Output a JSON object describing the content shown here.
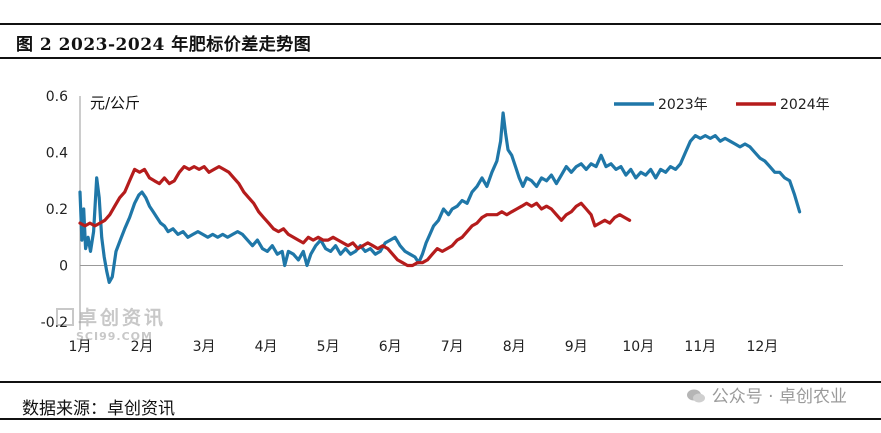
{
  "header": {
    "title": "图 2 2023-2024 年肥标价差走势图"
  },
  "footer": {
    "source": "数据来源：卓创资讯",
    "wechat": "公众号 · 卓创农业"
  },
  "watermark": {
    "cn": "卓创资讯",
    "en": "SCI99.COM"
  },
  "chart_data": {
    "type": "line",
    "title": "图 2 2023-2024 年肥标价差走势图",
    "ylabel": "元/公斤",
    "xlabel": "",
    "ylim": [
      -0.2,
      0.6
    ],
    "yticks": [
      "0.6",
      "0.4",
      "0.2",
      "0",
      "-0.2"
    ],
    "categories": [
      "1月",
      "2月",
      "3月",
      "4月",
      "5月",
      "6月",
      "7月",
      "8月",
      "9月",
      "10月",
      "11月",
      "12月"
    ],
    "legend_position": "top-right",
    "grid": false,
    "series": [
      {
        "name": "2023年",
        "color": "#1f77a8",
        "points": [
          [
            0.0,
            0.26
          ],
          [
            0.03,
            0.09
          ],
          [
            0.06,
            0.2
          ],
          [
            0.09,
            0.06
          ],
          [
            0.13,
            0.1
          ],
          [
            0.17,
            0.05
          ],
          [
            0.22,
            0.12
          ],
          [
            0.27,
            0.31
          ],
          [
            0.31,
            0.24
          ],
          [
            0.35,
            0.1
          ],
          [
            0.39,
            0.03
          ],
          [
            0.43,
            -0.02
          ],
          [
            0.47,
            -0.06
          ],
          [
            0.52,
            -0.04
          ],
          [
            0.58,
            0.05
          ],
          [
            0.65,
            0.09
          ],
          [
            0.72,
            0.13
          ],
          [
            0.8,
            0.17
          ],
          [
            0.88,
            0.22
          ],
          [
            0.95,
            0.25
          ],
          [
            1.0,
            0.26
          ],
          [
            1.06,
            0.24
          ],
          [
            1.12,
            0.21
          ],
          [
            1.18,
            0.19
          ],
          [
            1.24,
            0.17
          ],
          [
            1.3,
            0.15
          ],
          [
            1.36,
            0.14
          ],
          [
            1.42,
            0.12
          ],
          [
            1.5,
            0.13
          ],
          [
            1.58,
            0.11
          ],
          [
            1.66,
            0.12
          ],
          [
            1.74,
            0.1
          ],
          [
            1.82,
            0.11
          ],
          [
            1.9,
            0.12
          ],
          [
            1.98,
            0.11
          ],
          [
            2.06,
            0.1
          ],
          [
            2.14,
            0.11
          ],
          [
            2.22,
            0.1
          ],
          [
            2.3,
            0.11
          ],
          [
            2.38,
            0.1
          ],
          [
            2.46,
            0.11
          ],
          [
            2.54,
            0.12
          ],
          [
            2.62,
            0.11
          ],
          [
            2.7,
            0.09
          ],
          [
            2.78,
            0.07
          ],
          [
            2.86,
            0.09
          ],
          [
            2.94,
            0.06
          ],
          [
            3.02,
            0.05
          ],
          [
            3.1,
            0.07
          ],
          [
            3.18,
            0.04
          ],
          [
            3.26,
            0.05
          ],
          [
            3.3,
            0.0
          ],
          [
            3.36,
            0.05
          ],
          [
            3.44,
            0.04
          ],
          [
            3.52,
            0.02
          ],
          [
            3.6,
            0.05
          ],
          [
            3.66,
            0.0
          ],
          [
            3.72,
            0.04
          ],
          [
            3.8,
            0.07
          ],
          [
            3.88,
            0.09
          ],
          [
            3.96,
            0.06
          ],
          [
            4.04,
            0.05
          ],
          [
            4.12,
            0.07
          ],
          [
            4.2,
            0.04
          ],
          [
            4.28,
            0.06
          ],
          [
            4.36,
            0.04
          ],
          [
            4.44,
            0.05
          ],
          [
            4.52,
            0.07
          ],
          [
            4.6,
            0.05
          ],
          [
            4.68,
            0.06
          ],
          [
            4.76,
            0.04
          ],
          [
            4.84,
            0.05
          ],
          [
            4.92,
            0.08
          ],
          [
            5.0,
            0.09
          ],
          [
            5.08,
            0.1
          ],
          [
            5.16,
            0.07
          ],
          [
            5.24,
            0.05
          ],
          [
            5.32,
            0.04
          ],
          [
            5.4,
            0.03
          ],
          [
            5.46,
            0.01
          ],
          [
            5.52,
            0.04
          ],
          [
            5.58,
            0.08
          ],
          [
            5.64,
            0.11
          ],
          [
            5.7,
            0.14
          ],
          [
            5.78,
            0.16
          ],
          [
            5.86,
            0.2
          ],
          [
            5.94,
            0.18
          ],
          [
            6.0,
            0.2
          ],
          [
            6.08,
            0.21
          ],
          [
            6.16,
            0.23
          ],
          [
            6.24,
            0.22
          ],
          [
            6.32,
            0.26
          ],
          [
            6.4,
            0.28
          ],
          [
            6.48,
            0.31
          ],
          [
            6.56,
            0.28
          ],
          [
            6.64,
            0.33
          ],
          [
            6.72,
            0.37
          ],
          [
            6.78,
            0.44
          ],
          [
            6.82,
            0.54
          ],
          [
            6.86,
            0.47
          ],
          [
            6.9,
            0.41
          ],
          [
            6.96,
            0.39
          ],
          [
            7.02,
            0.35
          ],
          [
            7.08,
            0.31
          ],
          [
            7.14,
            0.28
          ],
          [
            7.2,
            0.31
          ],
          [
            7.28,
            0.3
          ],
          [
            7.36,
            0.28
          ],
          [
            7.44,
            0.31
          ],
          [
            7.52,
            0.3
          ],
          [
            7.6,
            0.32
          ],
          [
            7.68,
            0.29
          ],
          [
            7.76,
            0.32
          ],
          [
            7.84,
            0.35
          ],
          [
            7.92,
            0.33
          ],
          [
            8.0,
            0.35
          ],
          [
            8.08,
            0.36
          ],
          [
            8.16,
            0.34
          ],
          [
            8.24,
            0.36
          ],
          [
            8.32,
            0.35
          ],
          [
            8.4,
            0.39
          ],
          [
            8.48,
            0.35
          ],
          [
            8.56,
            0.36
          ],
          [
            8.64,
            0.34
          ],
          [
            8.72,
            0.35
          ],
          [
            8.8,
            0.32
          ],
          [
            8.88,
            0.34
          ],
          [
            8.96,
            0.31
          ],
          [
            9.04,
            0.33
          ],
          [
            9.12,
            0.32
          ],
          [
            9.2,
            0.34
          ],
          [
            9.28,
            0.31
          ],
          [
            9.36,
            0.34
          ],
          [
            9.44,
            0.33
          ],
          [
            9.52,
            0.35
          ],
          [
            9.6,
            0.34
          ],
          [
            9.68,
            0.36
          ],
          [
            9.76,
            0.4
          ],
          [
            9.84,
            0.44
          ],
          [
            9.92,
            0.46
          ],
          [
            10.0,
            0.45
          ],
          [
            10.08,
            0.46
          ],
          [
            10.16,
            0.45
          ],
          [
            10.24,
            0.46
          ],
          [
            10.32,
            0.44
          ],
          [
            10.4,
            0.45
          ],
          [
            10.48,
            0.44
          ],
          [
            10.56,
            0.43
          ],
          [
            10.64,
            0.42
          ],
          [
            10.72,
            0.43
          ],
          [
            10.8,
            0.42
          ],
          [
            10.88,
            0.4
          ],
          [
            10.96,
            0.38
          ],
          [
            11.04,
            0.37
          ],
          [
            11.12,
            0.35
          ],
          [
            11.2,
            0.33
          ],
          [
            11.28,
            0.33
          ],
          [
            11.36,
            0.31
          ],
          [
            11.44,
            0.3
          ],
          [
            11.52,
            0.25
          ],
          [
            11.6,
            0.19
          ]
        ]
      },
      {
        "name": "2024年",
        "color": "#b51c1c",
        "points": [
          [
            0.0,
            0.15
          ],
          [
            0.08,
            0.14
          ],
          [
            0.16,
            0.15
          ],
          [
            0.24,
            0.14
          ],
          [
            0.32,
            0.15
          ],
          [
            0.4,
            0.16
          ],
          [
            0.48,
            0.18
          ],
          [
            0.56,
            0.21
          ],
          [
            0.64,
            0.24
          ],
          [
            0.72,
            0.26
          ],
          [
            0.8,
            0.3
          ],
          [
            0.88,
            0.34
          ],
          [
            0.96,
            0.33
          ],
          [
            1.04,
            0.34
          ],
          [
            1.12,
            0.31
          ],
          [
            1.2,
            0.3
          ],
          [
            1.28,
            0.29
          ],
          [
            1.36,
            0.31
          ],
          [
            1.44,
            0.29
          ],
          [
            1.52,
            0.3
          ],
          [
            1.6,
            0.33
          ],
          [
            1.68,
            0.35
          ],
          [
            1.76,
            0.34
          ],
          [
            1.84,
            0.35
          ],
          [
            1.92,
            0.34
          ],
          [
            2.0,
            0.35
          ],
          [
            2.08,
            0.33
          ],
          [
            2.16,
            0.34
          ],
          [
            2.24,
            0.35
          ],
          [
            2.32,
            0.34
          ],
          [
            2.4,
            0.33
          ],
          [
            2.48,
            0.31
          ],
          [
            2.56,
            0.29
          ],
          [
            2.64,
            0.26
          ],
          [
            2.72,
            0.24
          ],
          [
            2.8,
            0.22
          ],
          [
            2.88,
            0.19
          ],
          [
            2.96,
            0.17
          ],
          [
            3.04,
            0.15
          ],
          [
            3.12,
            0.13
          ],
          [
            3.2,
            0.12
          ],
          [
            3.28,
            0.13
          ],
          [
            3.36,
            0.11
          ],
          [
            3.44,
            0.1
          ],
          [
            3.52,
            0.09
          ],
          [
            3.6,
            0.08
          ],
          [
            3.68,
            0.1
          ],
          [
            3.76,
            0.09
          ],
          [
            3.84,
            0.1
          ],
          [
            3.92,
            0.09
          ],
          [
            4.0,
            0.09
          ],
          [
            4.08,
            0.1
          ],
          [
            4.16,
            0.09
          ],
          [
            4.24,
            0.08
          ],
          [
            4.32,
            0.07
          ],
          [
            4.4,
            0.08
          ],
          [
            4.48,
            0.06
          ],
          [
            4.56,
            0.07
          ],
          [
            4.64,
            0.08
          ],
          [
            4.72,
            0.07
          ],
          [
            4.8,
            0.06
          ],
          [
            4.88,
            0.07
          ],
          [
            4.96,
            0.06
          ],
          [
            5.04,
            0.04
          ],
          [
            5.12,
            0.02
          ],
          [
            5.2,
            0.01
          ],
          [
            5.28,
            0.0
          ],
          [
            5.36,
            0.0
          ],
          [
            5.44,
            0.01
          ],
          [
            5.52,
            0.01
          ],
          [
            5.6,
            0.02
          ],
          [
            5.68,
            0.04
          ],
          [
            5.76,
            0.06
          ],
          [
            5.84,
            0.05
          ],
          [
            5.92,
            0.06
          ],
          [
            6.0,
            0.07
          ],
          [
            6.08,
            0.09
          ],
          [
            6.16,
            0.1
          ],
          [
            6.24,
            0.12
          ],
          [
            6.32,
            0.14
          ],
          [
            6.4,
            0.15
          ],
          [
            6.48,
            0.17
          ],
          [
            6.56,
            0.18
          ],
          [
            6.64,
            0.18
          ],
          [
            6.72,
            0.18
          ],
          [
            6.8,
            0.19
          ],
          [
            6.88,
            0.18
          ],
          [
            6.96,
            0.19
          ],
          [
            7.04,
            0.2
          ],
          [
            7.12,
            0.21
          ],
          [
            7.2,
            0.22
          ],
          [
            7.28,
            0.21
          ],
          [
            7.36,
            0.22
          ],
          [
            7.44,
            0.2
          ],
          [
            7.52,
            0.21
          ],
          [
            7.6,
            0.2
          ],
          [
            7.68,
            0.18
          ],
          [
            7.76,
            0.16
          ],
          [
            7.84,
            0.18
          ],
          [
            7.92,
            0.19
          ],
          [
            8.0,
            0.21
          ],
          [
            8.08,
            0.22
          ],
          [
            8.16,
            0.2
          ],
          [
            8.24,
            0.18
          ],
          [
            8.3,
            0.14
          ],
          [
            8.38,
            0.15
          ],
          [
            8.46,
            0.16
          ],
          [
            8.54,
            0.15
          ],
          [
            8.62,
            0.17
          ],
          [
            8.7,
            0.18
          ],
          [
            8.78,
            0.17
          ],
          [
            8.86,
            0.16
          ]
        ]
      }
    ]
  }
}
